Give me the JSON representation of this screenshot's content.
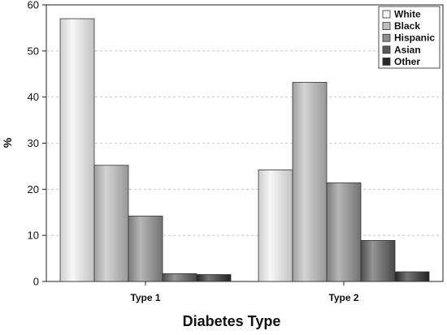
{
  "chart_data": {
    "type": "bar",
    "categories": [
      "Type 1",
      "Type 2"
    ],
    "series": [
      {
        "name": "White",
        "values": [
          57.0,
          24.2
        ],
        "color": "#f2f2f2"
      },
      {
        "name": "Black",
        "values": [
          25.2,
          43.2
        ],
        "color": "#bdbdbd"
      },
      {
        "name": "Hispanic",
        "values": [
          14.2,
          21.4
        ],
        "color": "#8f8f8f"
      },
      {
        "name": "Asian",
        "values": [
          1.7,
          8.9
        ],
        "color": "#5a5a5a"
      },
      {
        "name": "Other",
        "values": [
          1.5,
          2.1
        ],
        "color": "#2a2a2a"
      }
    ],
    "xlabel": "Diabetes Type",
    "ylabel": "%",
    "ylim": [
      0,
      60
    ],
    "yticks": [
      0,
      10,
      20,
      30,
      40,
      50,
      60
    ],
    "grid": true,
    "legend": "top-right"
  }
}
